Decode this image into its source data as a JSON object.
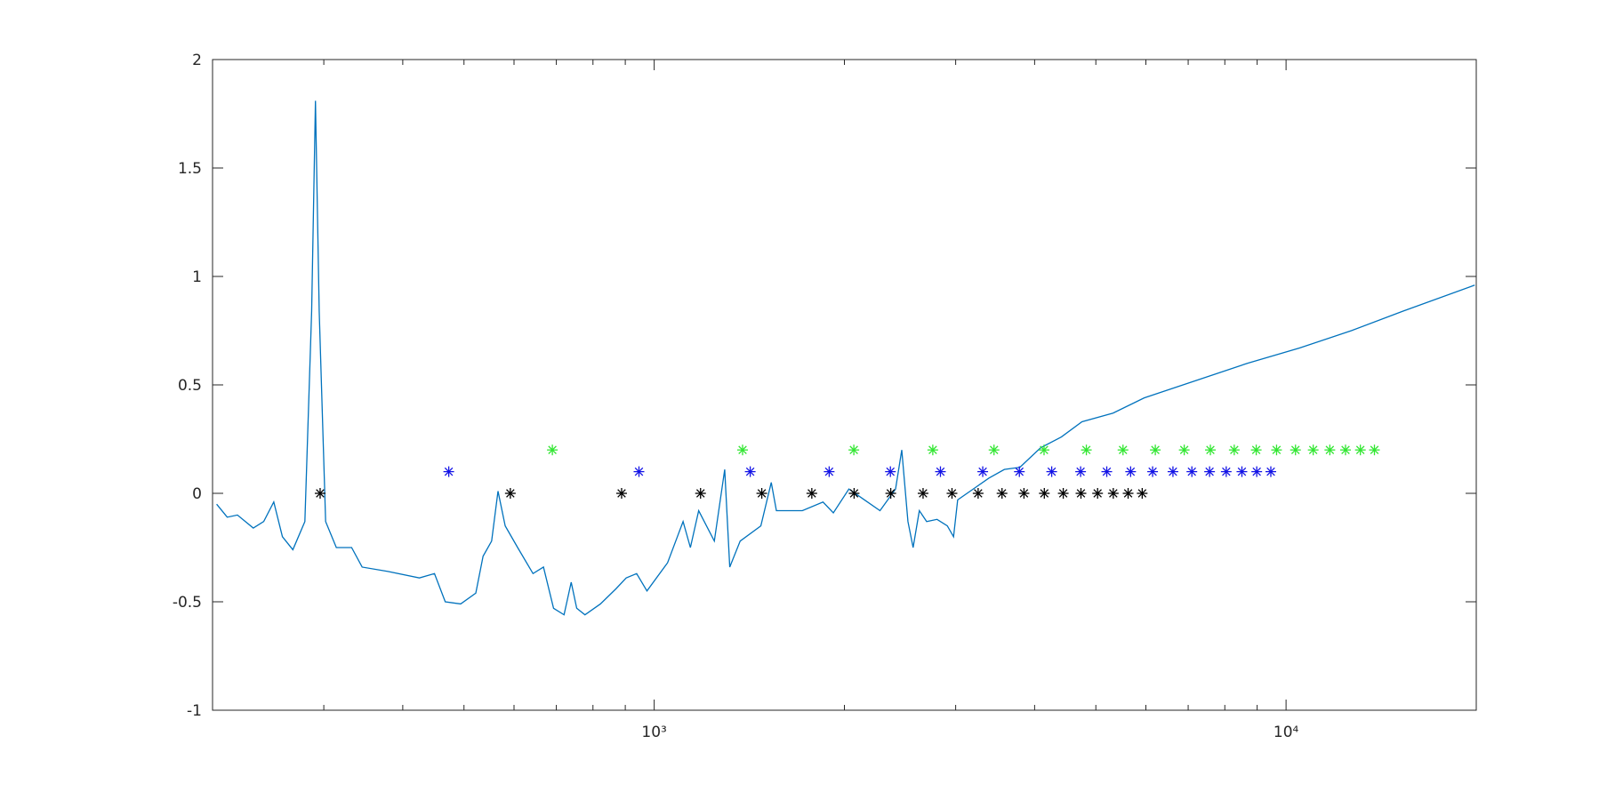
{
  "chart_data": {
    "type": "line",
    "xscale": "log",
    "xlim": [
      200,
      20000
    ],
    "xticks": [
      {
        "value": 1000,
        "label": "10³"
      },
      {
        "value": 10000,
        "label": "10⁴"
      }
    ],
    "xminor_ticks": [
      300,
      400,
      500,
      600,
      700,
      800,
      900,
      2000,
      3000,
      4000,
      5000,
      6000,
      7000,
      8000,
      9000
    ],
    "ylim": [
      -1,
      2
    ],
    "yticks": [
      -1,
      -0.5,
      0,
      0.5,
      1,
      1.5,
      2
    ],
    "grid": false,
    "box": true,
    "series": [
      {
        "mode": "line",
        "color": "#0072bd",
        "x": [
          203,
          211,
          219,
          232,
          241,
          250,
          258,
          268,
          280,
          287,
          291,
          295,
          302,
          314,
          332,
          345,
          379,
          425,
          449,
          467,
          494,
          522,
          536,
          553,
          566,
          581,
          608,
          643,
          668,
          693,
          720,
          739,
          754,
          777,
          822,
          870,
          903,
          938,
          974,
          1050,
          1111,
          1141,
          1176,
          1245,
          1293,
          1317,
          1368,
          1475,
          1532,
          1561,
          1716,
          1850,
          1921,
          2033,
          2151,
          2277,
          2410,
          2465,
          2521,
          2569,
          2628,
          2699,
          2803,
          2910,
          2977,
          3022,
          3199,
          3385,
          3582,
          3791,
          4088,
          4410,
          4753,
          5324,
          5963,
          7201,
          8695,
          10503,
          12686,
          15319,
          19887
        ],
        "values": [
          -0.05,
          -0.11,
          -0.1,
          -0.16,
          -0.13,
          -0.04,
          -0.2,
          -0.26,
          -0.13,
          0.84,
          1.81,
          0.84,
          -0.13,
          -0.25,
          -0.25,
          -0.34,
          -0.36,
          -0.39,
          -0.37,
          -0.5,
          -0.51,
          -0.46,
          -0.29,
          -0.22,
          0.01,
          -0.15,
          -0.25,
          -0.37,
          -0.34,
          -0.53,
          -0.56,
          -0.41,
          -0.53,
          -0.56,
          -0.51,
          -0.44,
          -0.39,
          -0.37,
          -0.45,
          -0.32,
          -0.13,
          -0.25,
          -0.08,
          -0.22,
          0.11,
          -0.34,
          -0.22,
          -0.15,
          0.05,
          -0.08,
          -0.08,
          -0.04,
          -0.09,
          0.02,
          -0.03,
          -0.08,
          0.02,
          0.2,
          -0.13,
          -0.25,
          -0.08,
          -0.13,
          -0.12,
          -0.15,
          -0.2,
          -0.03,
          0.02,
          0.07,
          0.11,
          0.12,
          0.21,
          0.26,
          0.33,
          0.37,
          0.44,
          0.52,
          0.6,
          0.67,
          0.75,
          0.84,
          0.96
        ]
      },
      {
        "mode": "markers",
        "marker": "*",
        "color": "#000000",
        "x": [
          296,
          592,
          888,
          1184,
          1480,
          1776,
          2072,
          2368,
          2664,
          2960,
          3256,
          3552,
          3848,
          4144,
          4440,
          4736,
          5032,
          5328,
          5624,
          5920
        ],
        "values": [
          0,
          0,
          0,
          0,
          0,
          0,
          0,
          0,
          0,
          0,
          0,
          0,
          0,
          0,
          0,
          0,
          0,
          0,
          0,
          0
        ]
      },
      {
        "mode": "markers",
        "marker": "*",
        "color": "#1414e6",
        "x": [
          473,
          946,
          1419,
          1892,
          2365,
          2838,
          3311,
          3784,
          4257,
          4730,
          5203,
          5676,
          6149,
          6622,
          7095,
          7568,
          8041,
          8514,
          8987,
          9460
        ],
        "values": [
          0.1,
          0.1,
          0.1,
          0.1,
          0.1,
          0.1,
          0.1,
          0.1,
          0.1,
          0.1,
          0.1,
          0.1,
          0.1,
          0.1,
          0.1,
          0.1,
          0.1,
          0.1,
          0.1,
          0.1
        ]
      },
      {
        "mode": "markers",
        "marker": "*",
        "color": "#33e633",
        "x": [
          690,
          1380,
          2070,
          2760,
          3450,
          4140,
          4830,
          5520,
          6210,
          6900,
          7590,
          8280,
          8970,
          9660,
          10350,
          11040,
          11730,
          12420,
          13110,
          13800
        ],
        "values": [
          0.2,
          0.2,
          0.2,
          0.2,
          0.2,
          0.2,
          0.2,
          0.2,
          0.2,
          0.2,
          0.2,
          0.2,
          0.2,
          0.2,
          0.2,
          0.2,
          0.2,
          0.2,
          0.2,
          0.2
        ]
      }
    ]
  }
}
